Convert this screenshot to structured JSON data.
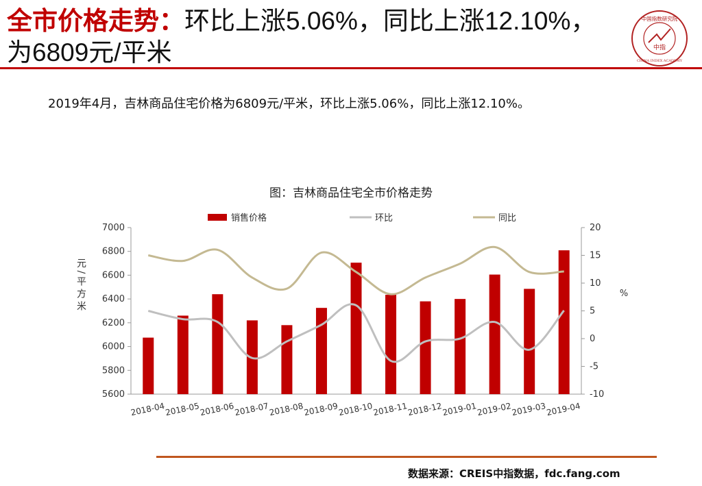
{
  "header": {
    "title_highlight": "全市价格走势：",
    "title_rest": "环比上涨5.06%，同比上涨12.10%，为6809元/平米",
    "logo_top_text": "中国指数研究院",
    "logo_center_text": "中指",
    "logo_bottom_text": "CHINA INDEX ACADEMY"
  },
  "summary": "2019年4月，吉林商品住宅价格为6809元/平米，环比上涨5.06%，同比上涨12.10%。",
  "footer": {
    "source": "数据来源：CREIS中指数据，fdc.fang.com"
  },
  "colors": {
    "brand_red": "#c00000",
    "bar": "#c00000",
    "mom_line": "#bfbfbf",
    "yoy_line": "#c4b992",
    "footer_rule": "#c0561e"
  },
  "chart_data": {
    "type": "bar",
    "title": "图：吉林商品住宅全市价格走势",
    "categories": [
      "2018-04",
      "2018-05",
      "2018-06",
      "2018-07",
      "2018-08",
      "2018-09",
      "2018-10",
      "2018-11",
      "2018-12",
      "2019-01",
      "2019-02",
      "2019-03",
      "2019-04"
    ],
    "series": [
      {
        "name": "销售价格",
        "kind": "bar",
        "axis": "left",
        "values": [
          6075,
          6260,
          6440,
          6220,
          6180,
          6325,
          6705,
          6435,
          6380,
          6400,
          6605,
          6485,
          6809
        ]
      },
      {
        "name": "环比",
        "kind": "line",
        "axis": "right",
        "values": [
          5,
          3.5,
          3,
          -3.5,
          -0.5,
          2.5,
          6,
          -4,
          -0.5,
          0,
          3,
          -2,
          5.06
        ]
      },
      {
        "name": "同比",
        "kind": "line",
        "axis": "right",
        "values": [
          15,
          14,
          16,
          11,
          9,
          15.5,
          12,
          8,
          11,
          13.5,
          16.5,
          12,
          12.1
        ]
      }
    ],
    "ylabel": "元/平方米",
    "y2label": "%",
    "ylim": [
      5600,
      7000
    ],
    "y2lim": [
      -10,
      20
    ],
    "yticks": [
      "5600",
      "5800",
      "6000",
      "6200",
      "6400",
      "6600",
      "6800",
      "7000"
    ],
    "y2ticks": [
      "-10",
      "-5",
      "0",
      "5",
      "10",
      "15",
      "20"
    ],
    "grid": false,
    "legend": "top"
  }
}
